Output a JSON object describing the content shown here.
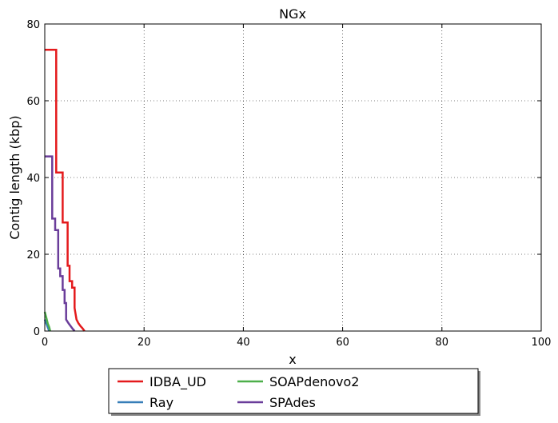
{
  "chart_data": {
    "type": "line",
    "title": "NGx",
    "xlabel": "x",
    "ylabel": "Contig length  (kbp)",
    "xlim": [
      0,
      100
    ],
    "ylim": [
      0,
      80
    ],
    "xticks": [
      0,
      20,
      40,
      60,
      80,
      100
    ],
    "yticks": [
      0,
      20,
      40,
      60,
      80
    ],
    "grid": true,
    "legend_position": "bottom-center",
    "series": [
      {
        "name": "IDBA_UD",
        "color": "#e41a1c",
        "step": true,
        "x": [
          0,
          2.3,
          2.3,
          3.6,
          3.6,
          4.6,
          4.6,
          5.0,
          5.0,
          5.5,
          5.5,
          6.0,
          6.0,
          6.2,
          6.4,
          6.8,
          7.2,
          7.6,
          8.0
        ],
        "y": [
          73.3,
          73.3,
          41.3,
          41.3,
          28.3,
          28.3,
          17.0,
          17.0,
          13.0,
          13.0,
          11.3,
          11.3,
          6.0,
          4.5,
          3.0,
          2.0,
          1.3,
          0.7,
          0
        ]
      },
      {
        "name": "Ray",
        "color": "#377eb8",
        "step": false,
        "x": [
          0,
          0.3,
          0.6,
          0.9
        ],
        "y": [
          3.0,
          2.0,
          1.0,
          0
        ]
      },
      {
        "name": "SOAPdenovo2",
        "color": "#4daf4a",
        "step": false,
        "x": [
          0,
          0.3,
          0.6,
          0.9,
          1.1
        ],
        "y": [
          5.0,
          3.5,
          2.0,
          1.0,
          0
        ]
      },
      {
        "name": "SPAdes",
        "color": "#6a3d9a",
        "step": true,
        "x": [
          0,
          1.5,
          1.5,
          2.1,
          2.1,
          2.7,
          2.7,
          3.1,
          3.1,
          3.6,
          3.6,
          4.0,
          4.0,
          4.3,
          4.3,
          4.8,
          5.2,
          5.6,
          6.0
        ],
        "y": [
          45.5,
          45.5,
          29.3,
          29.3,
          26.3,
          26.3,
          16.3,
          16.3,
          14.3,
          14.3,
          10.7,
          10.7,
          7.3,
          7.3,
          3.0,
          2.0,
          1.3,
          0.6,
          0
        ]
      }
    ]
  }
}
